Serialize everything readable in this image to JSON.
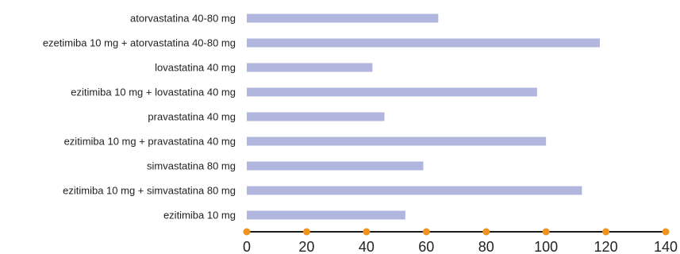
{
  "chart_data": {
    "type": "bar",
    "orientation": "horizontal",
    "categories": [
      "atorvastatina 40-80 mg",
      "ezetimiba 10 mg + atorvastatina 40-80 mg",
      "lovastatina 40 mg",
      "ezitimiba 10 mg + lovastatina 40 mg",
      "pravastatina 40 mg",
      "ezitimiba 10 mg + pravastatina 40 mg",
      "simvastatina 80 mg",
      "ezitimiba 10 mg + simvastatina 80 mg",
      "ezitimiba 10 mg"
    ],
    "values": [
      64,
      118,
      42,
      97,
      46,
      100,
      59,
      112,
      53
    ],
    "xlim": [
      0,
      140
    ],
    "xticks": [
      0,
      20,
      40,
      60,
      80,
      100,
      120,
      140
    ],
    "grid": false,
    "colors": {
      "bar": "#b0b6dd",
      "axis": "#1a1a1a",
      "tick_marker": "#f0921e"
    }
  }
}
